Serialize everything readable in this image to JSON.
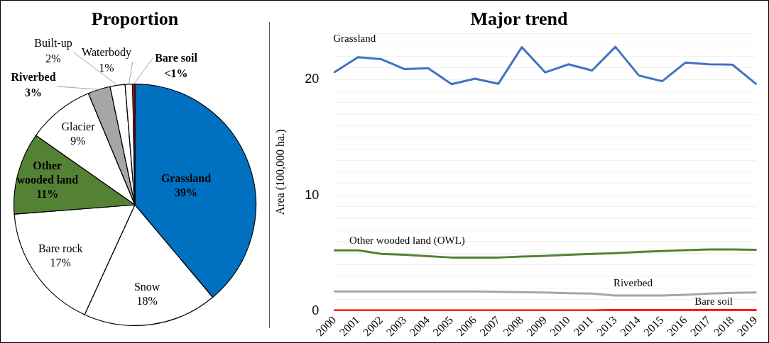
{
  "chart_data": [
    {
      "type": "pie",
      "title": "Proportion",
      "categories": [
        "Grassland",
        "Snow",
        "Bare rock",
        "Other wooded land",
        "Glacier",
        "Riverbed",
        "Built-up",
        "Waterbody",
        "Bare soil"
      ],
      "values": [
        39,
        18,
        17,
        11,
        9,
        3,
        2,
        1,
        0.3
      ],
      "colors": [
        "#0070c0",
        "#ffffff",
        "#ffffff",
        "#548235",
        "#ffffff",
        "#a6a6a6",
        "#ffffff",
        "#ffffff",
        "#ff0000"
      ],
      "value_labels": [
        "39%",
        "18%",
        "17%",
        "11%",
        "9%",
        "3%",
        "2%",
        "1%",
        "<1%"
      ]
    },
    {
      "type": "line",
      "title": "Major trend",
      "ylabel": "Area (100,000 ha.)",
      "categories": [
        "2000",
        "2001",
        "2002",
        "2003",
        "2004",
        "2005",
        "2006",
        "2007",
        "2008",
        "2009",
        "2010",
        "2011",
        "2013",
        "2014",
        "2015",
        "2016",
        "2017",
        "2018",
        "2019"
      ],
      "series": [
        {
          "name": "Grassland",
          "color": "#4472c4",
          "values": [
            20.64,
            21.93,
            21.76,
            20.9,
            20.98,
            19.6,
            20.08,
            19.64,
            22.8,
            20.62,
            21.32,
            20.78,
            22.83,
            20.36,
            19.86,
            21.48,
            21.32,
            21.29,
            19.64
          ]
        },
        {
          "name": "Other wooded land (OWL)",
          "color": "#548235",
          "values": [
            5.24,
            5.24,
            4.93,
            4.85,
            4.73,
            4.62,
            4.62,
            4.62,
            4.7,
            4.76,
            4.85,
            4.93,
            5.0,
            5.1,
            5.18,
            5.25,
            5.32,
            5.32,
            5.29
          ]
        },
        {
          "name": "Riverbed",
          "color": "#a5a5a5",
          "values": [
            1.68,
            1.68,
            1.68,
            1.68,
            1.68,
            1.68,
            1.68,
            1.65,
            1.62,
            1.59,
            1.54,
            1.5,
            1.34,
            1.34,
            1.34,
            1.4,
            1.5,
            1.57,
            1.6
          ]
        },
        {
          "name": "Bare soil",
          "color": "#ff0000",
          "values": [
            0.05,
            0.05,
            0.05,
            0.05,
            0.05,
            0.05,
            0.05,
            0.05,
            0.05,
            0.05,
            0.05,
            0.05,
            0.08,
            0.08,
            0.08,
            0.08,
            0.08,
            0.08,
            0.08
          ]
        }
      ],
      "ylim": [
        0,
        24
      ],
      "yticks": [
        0,
        {
          "value": 1,
          "label": null
        },
        {
          "value": 2,
          "label": null
        },
        {
          "value": 3,
          "label": null
        },
        {
          "value": 4,
          "label": null
        },
        {
          "value": 5,
          "label": null
        },
        {
          "value": 6,
          "label": null
        },
        {
          "value": 7,
          "label": null
        },
        {
          "value": 8,
          "label": null
        },
        {
          "value": 9,
          "label": null
        },
        10,
        {
          "value": 11,
          "label": null
        },
        {
          "value": 12,
          "label": null
        },
        {
          "value": 13,
          "label": null
        },
        {
          "value": 14,
          "label": null
        },
        {
          "value": 15,
          "label": null
        },
        {
          "value": 16,
          "label": null
        },
        {
          "value": 17,
          "label": null
        },
        {
          "value": 18,
          "label": null
        },
        {
          "value": 19,
          "label": null
        },
        20,
        {
          "value": 21,
          "label": null
        },
        {
          "value": 22,
          "label": null
        },
        {
          "value": 23,
          "label": null
        },
        {
          "value": 24,
          "label": null
        }
      ],
      "grid": "y",
      "marker": "none",
      "line_style": "solid",
      "legend": false
    }
  ]
}
